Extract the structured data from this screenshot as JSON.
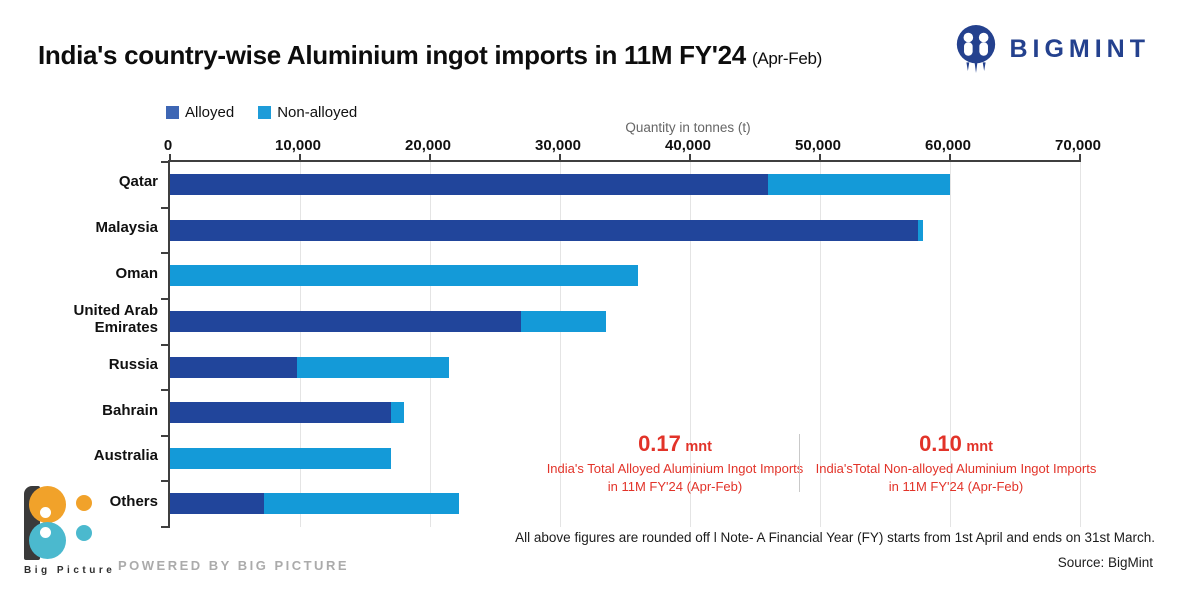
{
  "title": {
    "main": "India's country-wise Aluminium ingot imports in 11M FY'24",
    "suffix": "(Apr-Feb)"
  },
  "brand": {
    "name": "BIGMINT"
  },
  "colors": {
    "alloyed_bar": "#21459B",
    "non_alloyed_bar": "#149AD8",
    "legend_alloyed": "#3E66B4",
    "legend_non_alloyed": "#1E9CD9",
    "annotation_red": "#E23329",
    "brand_blue": "#24418E",
    "gridline": "#E4E4E4",
    "axis": "#3F3F3F",
    "bp_orange": "#F1A22A",
    "bp_teal": "#4BB9CE"
  },
  "legend": [
    {
      "label": "Alloyed",
      "color": "#3E66B4"
    },
    {
      "label": "Non-alloyed",
      "color": "#1E9CD9"
    }
  ],
  "chart_data": {
    "type": "bar",
    "orientation": "horizontal",
    "stacked": true,
    "grid": true,
    "title": "India's country-wise Aluminium ingot imports in 11M FY'24 (Apr-Feb)",
    "xlabel": "Quantity in tonnes (t)",
    "xlim": [
      0,
      70000
    ],
    "xticks": [
      "0",
      "10,000",
      "20,000",
      "30,000",
      "40,000",
      "50,000",
      "60,000",
      "70,000"
    ],
    "categories": [
      "Qatar",
      "Malaysia",
      "Oman",
      "United Arab Emirates",
      "Russia",
      "Bahrain",
      "Australia",
      "Others"
    ],
    "series": [
      {
        "name": "Alloyed",
        "color": "#21459B",
        "values": [
          46000,
          57500,
          0,
          27000,
          9800,
          17000,
          0,
          7200
        ]
      },
      {
        "name": "Non-alloyed",
        "color": "#149AD8",
        "values": [
          14000,
          400,
          36000,
          6500,
          11700,
          1000,
          17000,
          15000
        ]
      }
    ],
    "legend_position": "top-left"
  },
  "annotations": [
    {
      "value": "0.17",
      "unit": "mnt",
      "text": "India's Total Alloyed Aluminium Ingot Imports in 11M FY'24 (Apr-Feb)"
    },
    {
      "value": "0.10",
      "unit": "mnt",
      "text": "India'sTotal Non-alloyed Aluminium Ingot Imports in 11M FY'24 (Apr-Feb)"
    }
  ],
  "footer": {
    "note": "All above figures are rounded off l Note- A Financial Year (FY) starts from 1st April and ends on 31st March.",
    "source": "Source: BigMint",
    "logo_text": "Big Picture",
    "powered_by": "POWERED BY BIG PICTURE"
  }
}
